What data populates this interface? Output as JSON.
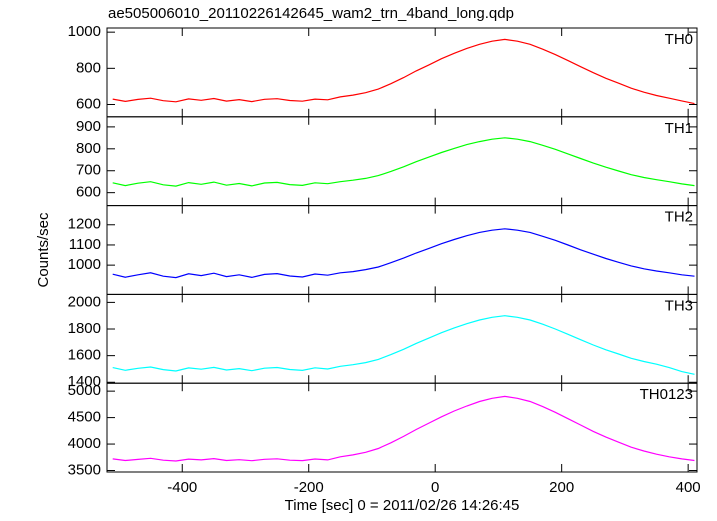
{
  "chart_data": [
    {
      "type": "line",
      "title": "ae505006010_20110226142645_wam2_trn_4band_long.qdp",
      "x": [
        -510,
        -490,
        -470,
        -450,
        -430,
        -410,
        -390,
        -370,
        -350,
        -330,
        -310,
        -290,
        -270,
        -250,
        -230,
        -210,
        -190,
        -170,
        -150,
        -130,
        -110,
        -90,
        -70,
        -50,
        -30,
        -10,
        10,
        30,
        50,
        70,
        90,
        110,
        130,
        150,
        170,
        190,
        210,
        230,
        250,
        270,
        290,
        310,
        330,
        350,
        370,
        390,
        410
      ],
      "ylim": [
        532,
        1023
      ],
      "yticks": [
        600,
        800,
        1000
      ],
      "series": [
        {
          "name": "TH0",
          "color": "#ff0000",
          "values": [
            630,
            617,
            628,
            635,
            621,
            615,
            631,
            623,
            633,
            619,
            627,
            616,
            629,
            632,
            622,
            618,
            630,
            626,
            642,
            652,
            665,
            685,
            715,
            749,
            786,
            819,
            853,
            883,
            910,
            933,
            950,
            960,
            950,
            933,
            906,
            876,
            843,
            809,
            776,
            745,
            718,
            690,
            668,
            650,
            635,
            620,
            605
          ]
        }
      ]
    },
    {
      "type": "line",
      "ylim": [
        541,
        946
      ],
      "yticks": [
        600,
        700,
        800,
        900
      ],
      "series": [
        {
          "name": "TH1",
          "color": "#00ff00",
          "values": [
            645,
            632,
            643,
            650,
            636,
            630,
            646,
            638,
            648,
            634,
            642,
            631,
            644,
            647,
            637,
            633,
            645,
            641,
            650,
            657,
            665,
            678,
            697,
            718,
            741,
            762,
            783,
            802,
            819,
            833,
            844,
            850,
            844,
            833,
            816,
            798,
            777,
            756,
            735,
            716,
            699,
            682,
            669,
            659,
            650,
            640,
            632
          ]
        }
      ]
    },
    {
      "type": "line",
      "ylabel": "Counts/sec",
      "ylim": [
        855,
        1295
      ],
      "yticks": [
        1000,
        1100,
        1200
      ],
      "series": [
        {
          "name": "TH2",
          "color": "#0000ff",
          "values": [
            955,
            940,
            952,
            962,
            945,
            938,
            957,
            948,
            960,
            943,
            952,
            939,
            954,
            958,
            946,
            941,
            956,
            950,
            962,
            968,
            978,
            991,
            1012,
            1035,
            1060,
            1083,
            1106,
            1127,
            1146,
            1162,
            1173,
            1180,
            1173,
            1162,
            1143,
            1123,
            1100,
            1076,
            1054,
            1033,
            1014,
            996,
            982,
            971,
            962,
            952,
            945
          ]
        }
      ]
    },
    {
      "type": "line",
      "ylim": [
        1393,
        2060
      ],
      "yticks": [
        1400,
        1600,
        1800,
        2000
      ],
      "series": [
        {
          "name": "TH3",
          "color": "#00ffff",
          "values": [
            1510,
            1490,
            1505,
            1515,
            1495,
            1485,
            1508,
            1498,
            1512,
            1492,
            1503,
            1487,
            1506,
            1511,
            1496,
            1489,
            1509,
            1500,
            1520,
            1532,
            1548,
            1572,
            1608,
            1648,
            1692,
            1732,
            1772,
            1808,
            1840,
            1868,
            1888,
            1900,
            1888,
            1868,
            1836,
            1800,
            1760,
            1720,
            1680,
            1644,
            1612,
            1580,
            1556,
            1536,
            1510,
            1480,
            1460
          ]
        }
      ]
    },
    {
      "type": "line",
      "xlabel": "Time [sec] 0 = 2011/02/26 14:26:45",
      "xlim": [
        -519,
        414
      ],
      "xticks": [
        -400,
        -200,
        0,
        200,
        400
      ],
      "ylim": [
        3472,
        5150
      ],
      "yticks": [
        3500,
        4000,
        4500,
        5000
      ],
      "series": [
        {
          "name": "TH0123",
          "color": "#ff00ff",
          "values": [
            3720,
            3690,
            3710,
            3730,
            3695,
            3680,
            3715,
            3700,
            3725,
            3690,
            3705,
            3685,
            3712,
            3722,
            3695,
            3688,
            3718,
            3700,
            3760,
            3796,
            3844,
            3916,
            4024,
            4144,
            4276,
            4396,
            4516,
            4624,
            4720,
            4804,
            4864,
            4900,
            4864,
            4804,
            4708,
            4600,
            4480,
            4360,
            4240,
            4132,
            4036,
            3940,
            3868,
            3808,
            3760,
            3720,
            3690
          ]
        }
      ]
    }
  ]
}
